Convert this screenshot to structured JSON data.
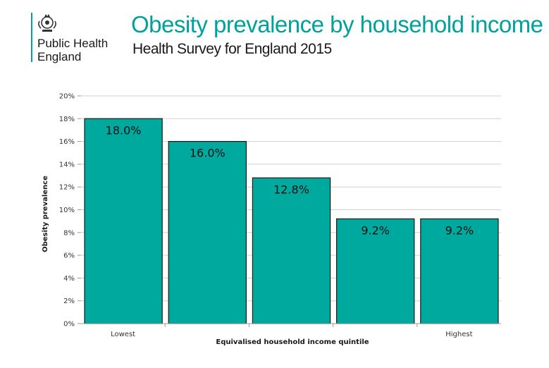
{
  "header": {
    "title": "Obesity prevalence by household income",
    "subtitle": "Health Survey for England 2015",
    "org_line1": "Public Health",
    "org_line2": "England",
    "crest_icon": "royal-crest-icon"
  },
  "colors": {
    "accent": "#00a19a",
    "bar_fill": "#00a99d",
    "bar_stroke": "#1a1a1a",
    "grid": "#d0d0d0"
  },
  "chart_data": {
    "type": "bar",
    "title": "",
    "xlabel": "Equivalised household income quintile",
    "ylabel": "Obesity prevalence",
    "categories": [
      "Lowest",
      "",
      "",
      "",
      "Highest"
    ],
    "values": [
      18.0,
      16.0,
      12.8,
      9.2,
      9.2
    ],
    "value_labels": [
      "18.0%",
      "16.0%",
      "12.8%",
      "9.2%",
      "9.2%"
    ],
    "ylim": [
      0,
      20
    ],
    "yticks": [
      0,
      2,
      4,
      6,
      8,
      10,
      12,
      14,
      16,
      18,
      20
    ],
    "ytick_labels": [
      "0%",
      "2%",
      "4%",
      "6%",
      "8%",
      "10%",
      "12%",
      "14%",
      "16%",
      "18%",
      "20%"
    ],
    "grid": true,
    "legend": "none"
  }
}
